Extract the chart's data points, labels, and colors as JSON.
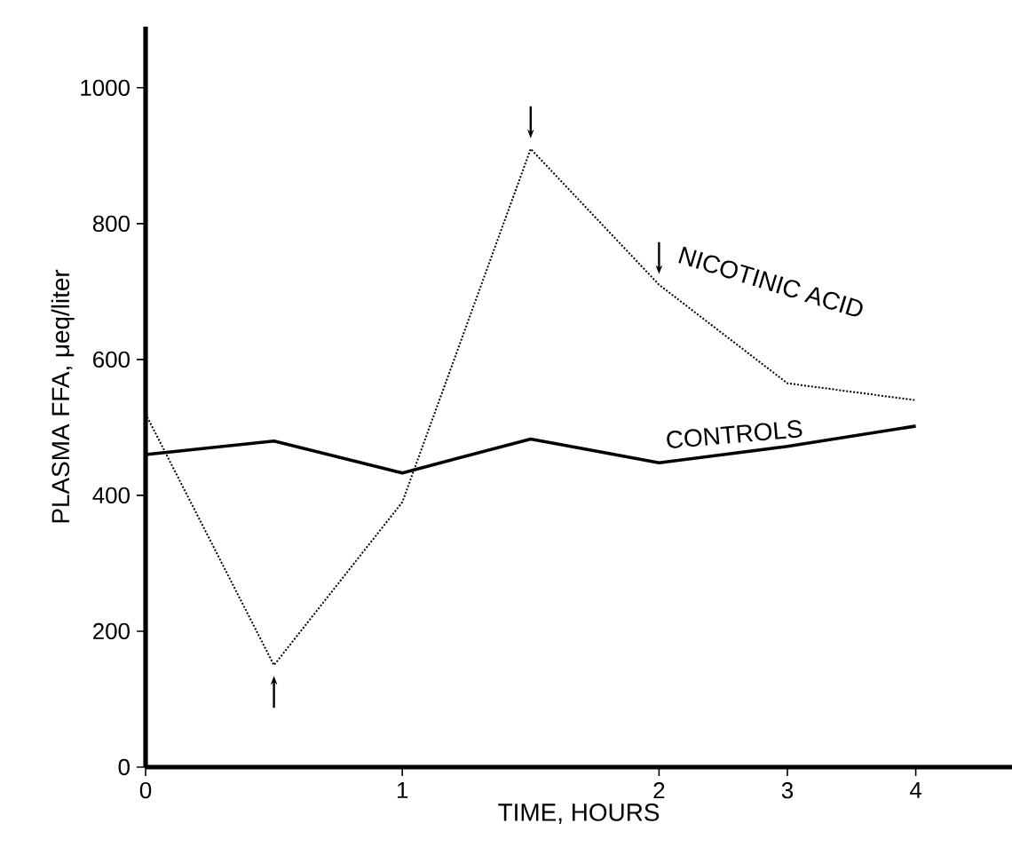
{
  "chart_data": {
    "type": "line",
    "xlabel": "TIME, HOURS",
    "ylabel": "PLASMA FFA, μeq/liter",
    "categories": [
      "0",
      null,
      "1",
      null,
      "2",
      "3",
      "4"
    ],
    "series": [
      {
        "name": "NICOTINIC ACID",
        "color": "#000000",
        "line_style": "dotted",
        "values": [
          520,
          150,
          390,
          910,
          710,
          565,
          540
        ]
      },
      {
        "name": "CONTROLS",
        "color": "#000000",
        "line_style": "solid",
        "values": [
          460,
          480,
          433,
          483,
          448,
          472,
          502
        ]
      }
    ],
    "ylim": [
      0,
      1090
    ],
    "yticks": [
      0,
      200,
      400,
      600,
      800,
      1000
    ],
    "grid": false,
    "marker": "none"
  }
}
